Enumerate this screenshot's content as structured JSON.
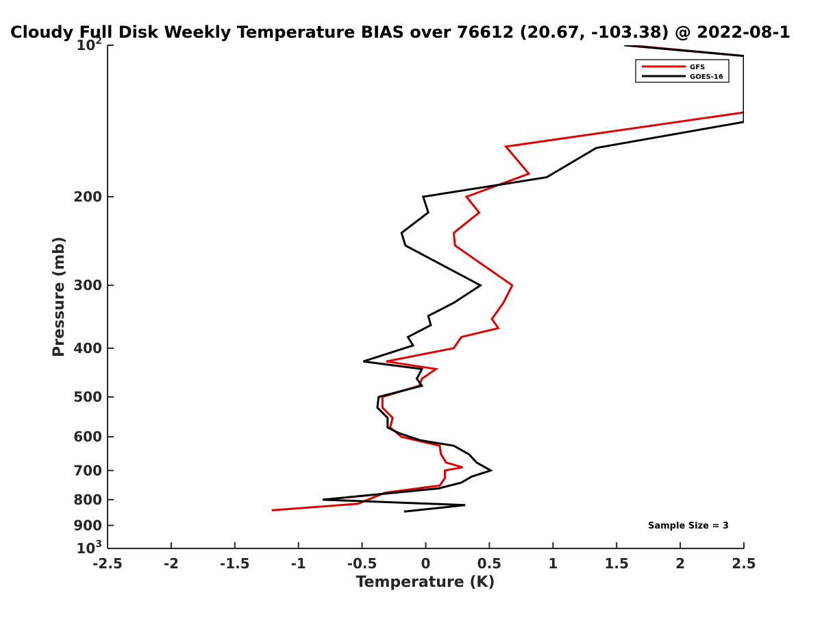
{
  "chart_data": {
    "type": "line",
    "title": "Cloudy Full Disk Weekly Temperature BIAS over 76612 (20.67, -103.38) @ 2022-08-1",
    "xlabel": "Temperature (K)",
    "ylabel": "Pressure (mb)",
    "xlim": [
      -2.5,
      2.5
    ],
    "ylim": [
      100,
      1000
    ],
    "y_scale": "log",
    "y_reversed": true,
    "x_ticks": [
      -2.5,
      -2,
      -1.5,
      -1,
      -0.5,
      0,
      0.5,
      1,
      1.5,
      2,
      2.5
    ],
    "x_tick_labels": [
      "-2.5",
      "-2",
      "-1.5",
      "-1",
      "-0.5",
      "0",
      "0.5",
      "1",
      "1.5",
      "2",
      "2.5"
    ],
    "y_ticks": [
      100,
      200,
      300,
      400,
      500,
      600,
      700,
      800,
      900,
      1000
    ],
    "y_tick_labels": [
      {
        "base": "10",
        "exp": "2"
      },
      {
        "base": "200"
      },
      {
        "base": "300"
      },
      {
        "base": "400"
      },
      {
        "base": "500"
      },
      {
        "base": "600"
      },
      {
        "base": "700"
      },
      {
        "base": "800"
      },
      {
        "base": "900"
      },
      {
        "base": "10",
        "exp": "3"
      }
    ],
    "grid": false,
    "legend_position": "top-right",
    "annotation": "Sample Size = 3",
    "series": [
      {
        "name": "GFS",
        "color": "#dd0000",
        "points": [
          [
            1.6,
            100
          ],
          [
            2.5,
            105
          ],
          [
            2.5,
            136
          ],
          [
            0.63,
            159
          ],
          [
            0.81,
            180
          ],
          [
            0.32,
            200
          ],
          [
            0.42,
            215
          ],
          [
            0.22,
            236
          ],
          [
            0.23,
            250
          ],
          [
            0.68,
            300
          ],
          [
            0.61,
            325
          ],
          [
            0.52,
            350
          ],
          [
            0.57,
            365
          ],
          [
            0.28,
            380
          ],
          [
            0.22,
            400
          ],
          [
            -0.31,
            425
          ],
          [
            0.08,
            440
          ],
          [
            -0.03,
            460
          ],
          [
            -0.05,
            475
          ],
          [
            -0.34,
            500
          ],
          [
            -0.34,
            525
          ],
          [
            -0.26,
            550
          ],
          [
            -0.28,
            575
          ],
          [
            -0.19,
            600
          ],
          [
            0.11,
            625
          ],
          [
            0.12,
            650
          ],
          [
            0.16,
            675
          ],
          [
            0.29,
            690
          ],
          [
            0.15,
            700
          ],
          [
            0.15,
            725
          ],
          [
            0.11,
            750
          ],
          [
            -0.32,
            775
          ],
          [
            -0.53,
            815
          ],
          [
            -1.21,
            840
          ]
        ]
      },
      {
        "name": "GOES-16",
        "color": "#000000",
        "points": [
          [
            1.56,
            100
          ],
          [
            2.5,
            105
          ],
          [
            2.5,
            142
          ],
          [
            1.34,
            160
          ],
          [
            0.95,
            183
          ],
          [
            -0.02,
            200
          ],
          [
            0.02,
            215
          ],
          [
            -0.19,
            236
          ],
          [
            -0.16,
            250
          ],
          [
            0.43,
            300
          ],
          [
            0.22,
            325
          ],
          [
            0.02,
            345
          ],
          [
            0.04,
            360
          ],
          [
            -0.14,
            380
          ],
          [
            -0.1,
            395
          ],
          [
            -0.49,
            425
          ],
          [
            -0.03,
            440
          ],
          [
            -0.07,
            460
          ],
          [
            -0.03,
            475
          ],
          [
            -0.37,
            500
          ],
          [
            -0.38,
            525
          ],
          [
            -0.3,
            550
          ],
          [
            -0.3,
            575
          ],
          [
            -0.21,
            590
          ],
          [
            -0.04,
            610
          ],
          [
            0.22,
            625
          ],
          [
            0.34,
            650
          ],
          [
            0.4,
            675
          ],
          [
            0.51,
            700
          ],
          [
            0.36,
            720
          ],
          [
            0.28,
            740
          ],
          [
            0.1,
            760
          ],
          [
            -0.81,
            800
          ],
          [
            0.31,
            820
          ],
          [
            -0.17,
            845
          ]
        ]
      }
    ]
  }
}
